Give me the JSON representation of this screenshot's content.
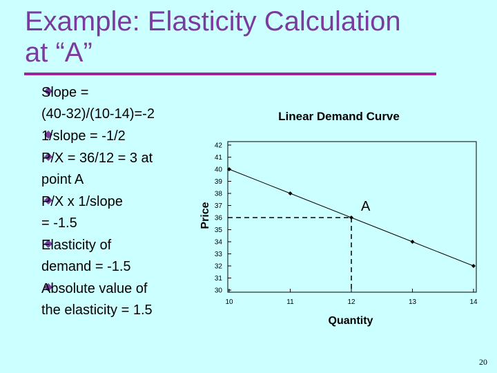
{
  "slide": {
    "title_lines": [
      "Example: Elasticity Calculation",
      "at “A”"
    ],
    "bullets": [
      [
        "Slope =",
        "(40-32)/(10-14)=-2"
      ],
      [
        "1/slope = -1/2"
      ],
      [
        "P/X = 36/12 = 3 at",
        "point A"
      ],
      [
        "P/X x 1/slope",
        "= -1.5"
      ],
      [
        "Elasticity of",
        "demand = -1.5"
      ],
      [
        "Absolute value of",
        "the elasticity = 1.5"
      ]
    ],
    "page_number": "20"
  },
  "chart_data": {
    "type": "line",
    "title": "Linear Demand Curve",
    "x_label": "Quantity",
    "y_label": "Price",
    "x": [
      10,
      11,
      12,
      13,
      14
    ],
    "series": [
      {
        "color": "#000000",
        "values": [
          40,
          38,
          36,
          34,
          32
        ]
      }
    ],
    "xlim": [
      10,
      14
    ],
    "xticks": [
      10,
      11,
      12,
      13,
      14
    ],
    "ylim": [
      30,
      42
    ],
    "yticks": [
      30,
      31,
      32,
      33,
      34,
      35,
      36,
      37,
      38,
      39,
      40,
      41,
      42
    ],
    "annotation": {
      "text": "A",
      "x": 12,
      "y": 36
    }
  }
}
